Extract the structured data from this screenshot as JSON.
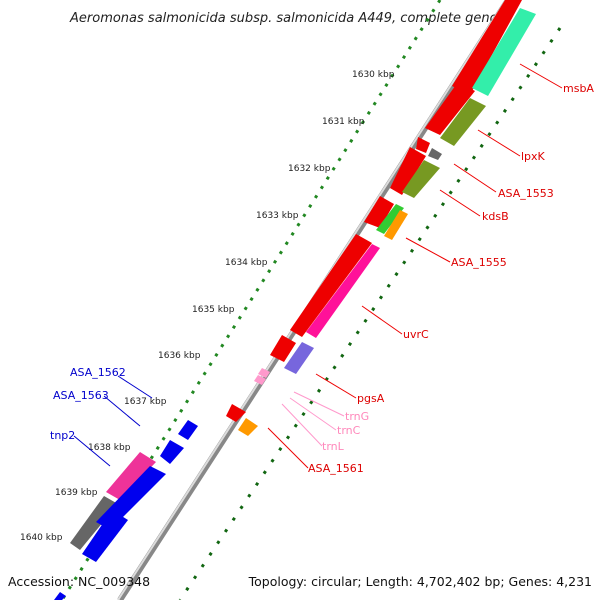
{
  "title": "Aeromonas salmonicida subsp. salmonicida A449, complete geno...",
  "accession": "Accession: NC_009348",
  "topology": "Topology: circular; Length: 4,702,402 bp; Genes: 4,231",
  "ticks": [
    "1630 kbp",
    "1631 kbp",
    "1632 kbp",
    "1633 kbp",
    "1634 kbp",
    "1635 kbp",
    "1636 kbp",
    "1637 kbp",
    "1638 kbp",
    "1639 kbp",
    "1640 kbp"
  ],
  "genes_right": [
    {
      "label": "msbA",
      "color": "#dd0000"
    },
    {
      "label": "lpxK",
      "color": "#dd0000"
    },
    {
      "label": "ASA_1553",
      "color": "#dd0000"
    },
    {
      "label": "kdsB",
      "color": "#dd0000"
    },
    {
      "label": "ASA_1555",
      "color": "#dd0000"
    },
    {
      "label": "uvrC",
      "color": "#dd0000"
    },
    {
      "label": "pgsA",
      "color": "#dd0000"
    },
    {
      "label": "trnG",
      "color": "#ff88bb"
    },
    {
      "label": "trnC",
      "color": "#ff88bb"
    },
    {
      "label": "trnL",
      "color": "#ff88bb"
    },
    {
      "label": "ASA_1561",
      "color": "#dd0000"
    }
  ],
  "genes_left": [
    {
      "label": "ASA_1562",
      "color": "#0000cc"
    },
    {
      "label": "ASA_1563",
      "color": "#0000cc"
    },
    {
      "label": "tnp2",
      "color": "#0000cc"
    }
  ],
  "colors": {
    "gene": "#ee0000",
    "backbone": "#888888",
    "dots_outer": "#228822",
    "dots_inner": "#116611"
  }
}
